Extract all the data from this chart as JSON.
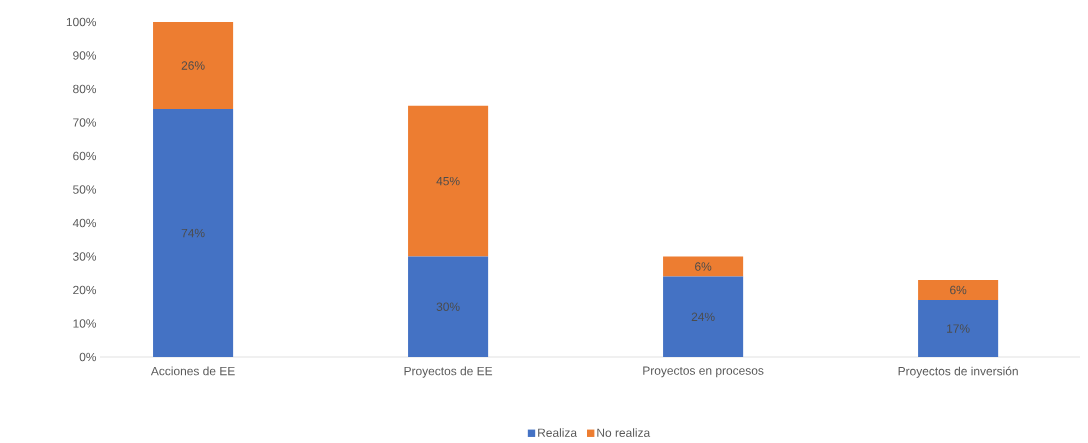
{
  "chart_data": {
    "type": "bar",
    "stacked": true,
    "categories": [
      "Acciones de EE",
      "Proyectos de EE",
      "Proyectos en procesos",
      "Proyectos de inversión"
    ],
    "series": [
      {
        "name": "Realiza",
        "color": "#4472c4",
        "values": [
          74,
          30,
          24,
          17
        ],
        "value_labels": [
          "74%",
          "30%",
          "24%",
          "17%"
        ]
      },
      {
        "name": "No realiza",
        "color": "#ed7d31",
        "values": [
          26,
          45,
          6,
          6
        ],
        "value_labels": [
          "26%",
          "45%",
          "6%",
          "6%"
        ]
      }
    ],
    "ylim": [
      0,
      100
    ],
    "yticks": [
      {
        "value": 0,
        "label": "0%"
      },
      {
        "value": 10,
        "label": "10%"
      },
      {
        "value": 20,
        "label": "20%"
      },
      {
        "value": 30,
        "label": "30%"
      },
      {
        "value": 40,
        "label": "40%"
      },
      {
        "value": 50,
        "label": "50%"
      },
      {
        "value": 60,
        "label": "60%"
      },
      {
        "value": 70,
        "label": "70%"
      },
      {
        "value": 80,
        "label": "80%"
      },
      {
        "value": 90,
        "label": "90%"
      },
      {
        "value": 100,
        "label": "100%"
      }
    ],
    "legend": "bottom"
  }
}
